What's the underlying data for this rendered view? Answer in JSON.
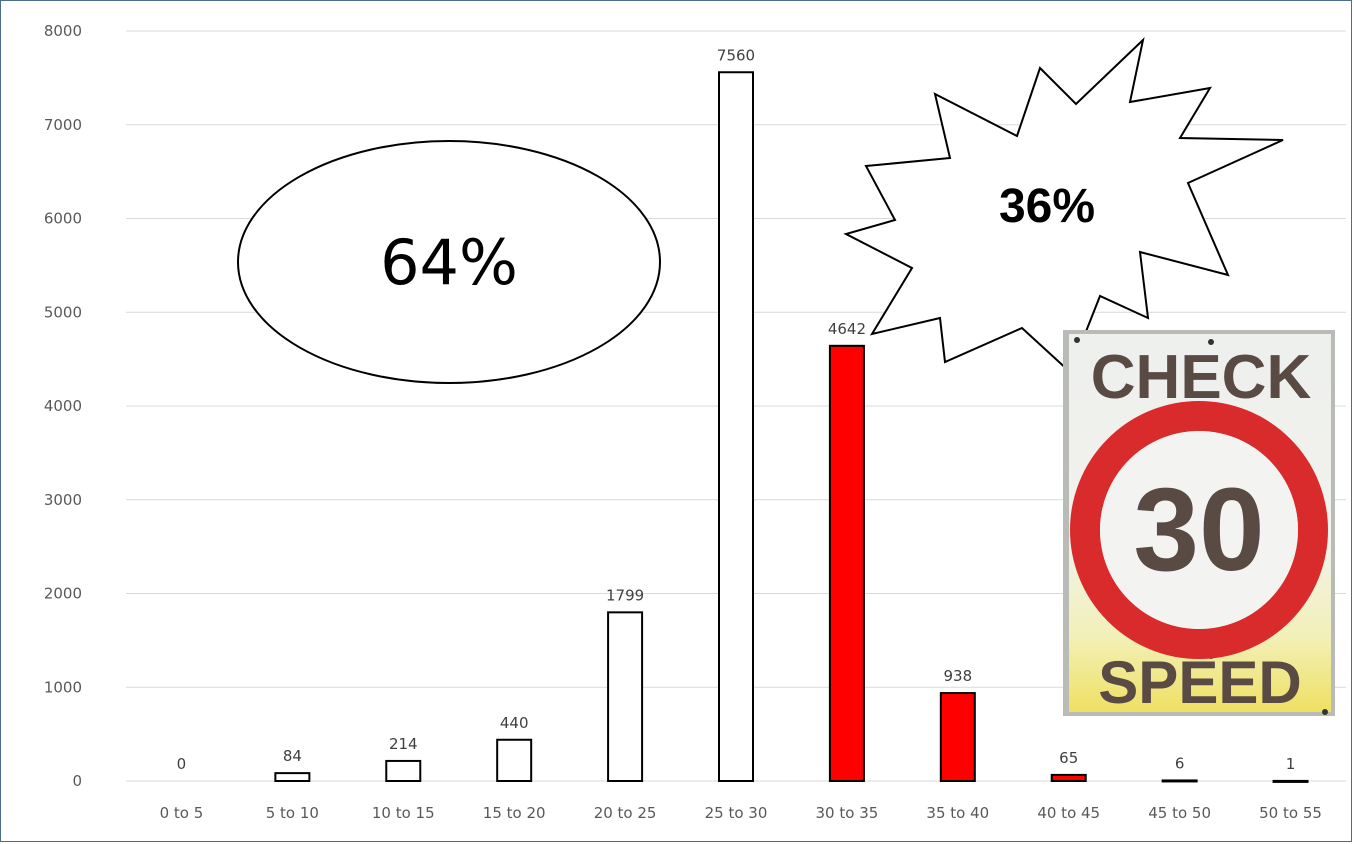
{
  "chart_data": {
    "type": "bar",
    "categories": [
      "0 to 5",
      "5 to 10",
      "10 to 15",
      "15 to 20",
      "20 to 25",
      "25 to 30",
      "30 to 35",
      "35 to 40",
      "40 to 45",
      "45 to 50",
      "50 to 55"
    ],
    "values": [
      0,
      84,
      214,
      440,
      1799,
      7560,
      4642,
      938,
      65,
      6,
      1
    ],
    "bar_colors": [
      "#ffffff",
      "#ffffff",
      "#ffffff",
      "#ffffff",
      "#ffffff",
      "#ffffff",
      "#ff0000",
      "#ff0000",
      "#ff0000",
      "#ffffff",
      "#ffffff"
    ],
    "ylim": [
      0,
      8000
    ],
    "yticks": [
      0,
      1000,
      2000,
      3000,
      4000,
      5000,
      6000,
      7000,
      8000
    ],
    "grid": true,
    "title": "",
    "xlabel": "",
    "ylabel": ""
  },
  "annotations": {
    "oval_text": "64%",
    "star_text": "36%"
  },
  "sign": {
    "top_text": "CHECK",
    "number": "30",
    "bottom_text": "SPEED",
    "ring_color": "#d92b2b",
    "text_color": "#5a4a44"
  }
}
